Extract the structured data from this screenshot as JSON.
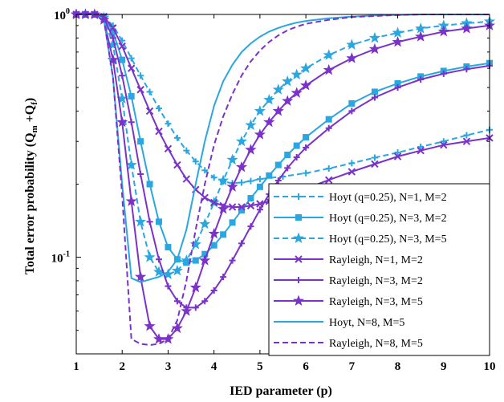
{
  "chart_data": {
    "type": "line",
    "xlabel": "IED parameter (p)",
    "ylabel": {
      "main": "Total error probability (Q",
      "sub_m": "m",
      "plus": " +Q",
      "sub_f": "f",
      "close": ")"
    },
    "xlim": [
      1,
      10
    ],
    "ylim": [
      0.04,
      1
    ],
    "yscale": "log",
    "xticks": [
      "1",
      "2",
      "3",
      "4",
      "5",
      "6",
      "7",
      "8",
      "9",
      "10"
    ],
    "yticks": [
      {
        "base": "10",
        "exp": "0",
        "value": 1
      },
      {
        "base": "10",
        "exp": "-1",
        "value": 0.1
      }
    ],
    "legend_position": "lower-right",
    "colors": {
      "hoyt": "#2aa7e0",
      "rayleigh": "#7a32c8"
    },
    "series": [
      {
        "name": "Hoyt (q=0.25), N=1, M=2",
        "color": "#2aa7e0",
        "dash": true,
        "marker": "plus",
        "x": [
          1,
          1.2,
          1.4,
          1.6,
          1.8,
          2,
          2.2,
          2.4,
          2.6,
          2.8,
          3,
          3.2,
          3.4,
          3.6,
          3.8,
          4,
          4.2,
          4.4,
          4.6,
          4.8,
          5,
          5.5,
          6,
          6.5,
          7,
          7.5,
          8,
          8.5,
          9,
          9.5,
          10
        ],
        "y": [
          1,
          1,
          1,
          0.98,
          0.9,
          0.78,
          0.66,
          0.56,
          0.48,
          0.41,
          0.355,
          0.31,
          0.275,
          0.248,
          0.228,
          0.213,
          0.205,
          0.202,
          0.203,
          0.206,
          0.21,
          0.215,
          0.222,
          0.232,
          0.244,
          0.257,
          0.27,
          0.285,
          0.3,
          0.318,
          0.335
        ]
      },
      {
        "name": "Hoyt (q=0.25), N=3, M=2",
        "color": "#2aa7e0",
        "dash": false,
        "marker": "square",
        "x": [
          1,
          1.2,
          1.4,
          1.6,
          1.8,
          2,
          2.2,
          2.4,
          2.6,
          2.8,
          3,
          3.2,
          3.4,
          3.6,
          3.8,
          4,
          4.2,
          4.4,
          4.6,
          4.8,
          5,
          5.2,
          5.4,
          5.6,
          5.8,
          6,
          6.5,
          7,
          7.5,
          8,
          8.5,
          9,
          9.5,
          10
        ],
        "y": [
          1,
          1,
          1,
          0.98,
          0.85,
          0.65,
          0.46,
          0.3,
          0.2,
          0.14,
          0.11,
          0.098,
          0.095,
          0.097,
          0.103,
          0.112,
          0.124,
          0.139,
          0.156,
          0.175,
          0.195,
          0.217,
          0.24,
          0.264,
          0.288,
          0.312,
          0.37,
          0.43,
          0.48,
          0.52,
          0.555,
          0.585,
          0.61,
          0.63
        ]
      },
      {
        "name": "Hoyt (q=0.25), N=3, M=5",
        "color": "#2aa7e0",
        "dash": true,
        "marker": "star",
        "x": [
          1,
          1.2,
          1.4,
          1.6,
          1.8,
          2,
          2.2,
          2.4,
          2.6,
          2.8,
          3,
          3.2,
          3.4,
          3.6,
          3.8,
          4,
          4.2,
          4.4,
          4.6,
          4.8,
          5,
          5.2,
          5.4,
          5.6,
          5.8,
          6,
          6.5,
          7,
          7.5,
          8,
          8.5,
          9,
          9.5,
          10
        ],
        "y": [
          1,
          1,
          1,
          0.97,
          0.75,
          0.45,
          0.24,
          0.14,
          0.1,
          0.087,
          0.085,
          0.088,
          0.097,
          0.113,
          0.137,
          0.168,
          0.207,
          0.252,
          0.3,
          0.35,
          0.4,
          0.445,
          0.49,
          0.53,
          0.565,
          0.6,
          0.68,
          0.75,
          0.8,
          0.84,
          0.875,
          0.9,
          0.92,
          0.935
        ]
      },
      {
        "name": "Rayleigh, N=1, M=2",
        "color": "#7a32c8",
        "dash": false,
        "marker": "x",
        "x": [
          1,
          1.2,
          1.4,
          1.6,
          1.8,
          2,
          2.2,
          2.4,
          2.6,
          2.8,
          3,
          3.2,
          3.4,
          3.6,
          3.8,
          4,
          4.2,
          4.4,
          4.6,
          4.8,
          5,
          5.2,
          5.4,
          5.6,
          5.8,
          6,
          6.5,
          7,
          7.5,
          8,
          8.5,
          9,
          9.5,
          10
        ],
        "y": [
          1,
          1,
          1,
          0.98,
          0.88,
          0.74,
          0.6,
          0.49,
          0.4,
          0.33,
          0.28,
          0.24,
          0.21,
          0.19,
          0.176,
          0.168,
          0.163,
          0.161,
          0.161,
          0.163,
          0.166,
          0.17,
          0.175,
          0.18,
          0.186,
          0.192,
          0.208,
          0.225,
          0.242,
          0.26,
          0.275,
          0.29,
          0.3,
          0.31
        ]
      },
      {
        "name": "Rayleigh, N=3, M=2",
        "color": "#7a32c8",
        "dash": false,
        "marker": "plus",
        "x": [
          1,
          1.2,
          1.4,
          1.6,
          1.8,
          2,
          2.2,
          2.4,
          2.6,
          2.8,
          3,
          3.2,
          3.4,
          3.6,
          3.8,
          4,
          4.2,
          4.4,
          4.6,
          4.8,
          5,
          5.2,
          5.4,
          5.6,
          5.8,
          6,
          6.5,
          7,
          7.5,
          8,
          8.5,
          9,
          9.5,
          10
        ],
        "y": [
          1,
          1,
          1,
          0.97,
          0.8,
          0.56,
          0.36,
          0.22,
          0.14,
          0.098,
          0.076,
          0.066,
          0.062,
          0.062,
          0.066,
          0.073,
          0.083,
          0.097,
          0.114,
          0.134,
          0.157,
          0.182,
          0.207,
          0.233,
          0.258,
          0.283,
          0.34,
          0.4,
          0.455,
          0.5,
          0.54,
          0.57,
          0.595,
          0.615
        ]
      },
      {
        "name": "Rayleigh, N=3, M=5",
        "color": "#7a32c8",
        "dash": false,
        "marker": "star",
        "x": [
          1,
          1.2,
          1.4,
          1.6,
          1.8,
          2,
          2.2,
          2.4,
          2.6,
          2.8,
          3,
          3.2,
          3.4,
          3.6,
          3.8,
          4,
          4.2,
          4.4,
          4.6,
          4.8,
          5,
          5.2,
          5.4,
          5.6,
          5.8,
          6,
          6.5,
          7,
          7.5,
          8,
          8.5,
          9,
          9.5,
          10
        ],
        "y": [
          1,
          1,
          1,
          0.95,
          0.65,
          0.36,
          0.17,
          0.083,
          0.052,
          0.046,
          0.046,
          0.051,
          0.06,
          0.075,
          0.097,
          0.125,
          0.158,
          0.195,
          0.235,
          0.277,
          0.32,
          0.36,
          0.4,
          0.44,
          0.475,
          0.51,
          0.59,
          0.66,
          0.72,
          0.77,
          0.81,
          0.85,
          0.875,
          0.9
        ]
      },
      {
        "name": "Hoyt, N=8, M=5",
        "color": "#2aa7e0",
        "dash": false,
        "marker": "none",
        "x": [
          1,
          1.2,
          1.4,
          1.6,
          1.8,
          2,
          2.2,
          2.4,
          2.6,
          2.8,
          3,
          3.2,
          3.4,
          3.6,
          3.8,
          4,
          4.2,
          4.4,
          4.6,
          4.8,
          5,
          5.2,
          5.4,
          5.6,
          5.8,
          6,
          6.5,
          7,
          7.5,
          8,
          8.5,
          9,
          9.5,
          10
        ],
        "y": [
          1,
          1,
          1,
          0.96,
          0.55,
          0.2,
          0.082,
          0.079,
          0.081,
          0.083,
          0.087,
          0.098,
          0.13,
          0.2,
          0.3,
          0.42,
          0.53,
          0.62,
          0.7,
          0.76,
          0.81,
          0.85,
          0.88,
          0.905,
          0.925,
          0.94,
          0.965,
          0.98,
          0.99,
          0.995,
          1,
          1,
          1,
          1
        ]
      },
      {
        "name": "Rayleigh, N=8, M=5",
        "color": "#7a32c8",
        "dash": true,
        "marker": "none",
        "x": [
          1,
          1.2,
          1.4,
          1.6,
          1.8,
          2,
          2.2,
          2.4,
          2.6,
          2.8,
          3,
          3.2,
          3.4,
          3.6,
          3.8,
          4,
          4.2,
          4.4,
          4.6,
          4.8,
          5,
          5.2,
          5.4,
          5.6,
          5.8,
          6,
          6.5,
          7,
          7.5,
          8,
          8.5,
          9,
          9.5,
          10
        ],
        "y": [
          1,
          1,
          1,
          0.96,
          0.55,
          0.18,
          0.046,
          0.044,
          0.0435,
          0.044,
          0.046,
          0.055,
          0.08,
          0.13,
          0.2,
          0.29,
          0.38,
          0.47,
          0.56,
          0.64,
          0.71,
          0.77,
          0.82,
          0.86,
          0.89,
          0.915,
          0.95,
          0.975,
          0.985,
          0.995,
          1,
          1,
          1,
          1
        ]
      }
    ]
  }
}
